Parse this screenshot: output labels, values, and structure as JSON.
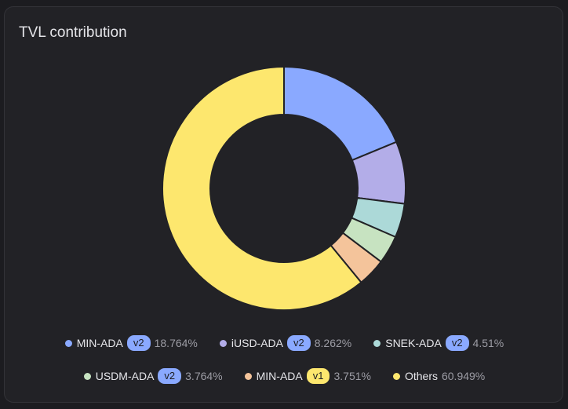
{
  "title": "TVL contribution",
  "colors": {
    "blue": "#8aa9ff",
    "lavender": "#b3ade8",
    "teal": "#acd9d8",
    "green": "#c7e3c1",
    "peach": "#f4c49b",
    "yellow": "#fde76e"
  },
  "legend": [
    {
      "name": "MIN-ADA",
      "badge": "v2",
      "pct": "18.764%",
      "color": "#8aa9ff",
      "badge_color": "#8aa9ff"
    },
    {
      "name": "iUSD-ADA",
      "badge": "v2",
      "pct": "8.262%",
      "color": "#b3ade8",
      "badge_color": "#8aa9ff"
    },
    {
      "name": "SNEK-ADA",
      "badge": "v2",
      "pct": "4.51%",
      "color": "#acd9d8",
      "badge_color": "#8aa9ff"
    },
    {
      "name": "USDM-ADA",
      "badge": "v2",
      "pct": "3.764%",
      "color": "#c7e3c1",
      "badge_color": "#8aa9ff"
    },
    {
      "name": "MIN-ADA",
      "badge": "v1",
      "pct": "3.751%",
      "color": "#f4c49b",
      "badge_color": "#fde76e"
    },
    {
      "name": "Others",
      "badge": "",
      "pct": "60.949%",
      "color": "#fde76e",
      "badge_color": ""
    }
  ],
  "chart_data": {
    "type": "pie",
    "donut": true,
    "title": "TVL contribution",
    "categories": [
      "MIN-ADA v2",
      "iUSD-ADA v2",
      "SNEK-ADA v2",
      "USDM-ADA v2",
      "MIN-ADA v1",
      "Others"
    ],
    "values": [
      18.764,
      8.262,
      4.51,
      3.764,
      3.751,
      60.949
    ],
    "colors": [
      "#8aa9ff",
      "#b3ade8",
      "#acd9d8",
      "#c7e3c1",
      "#f4c49b",
      "#fde76e"
    ],
    "legend": "bottom"
  }
}
